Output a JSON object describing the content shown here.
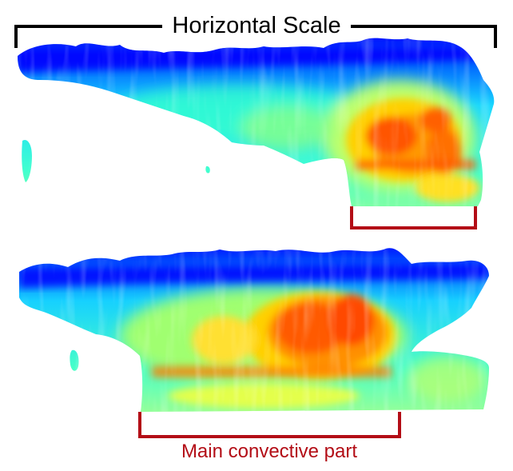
{
  "labels": {
    "horizontal_scale": "Horizontal Scale",
    "main_convective_part": "Main convective part"
  },
  "colors": {
    "scale_bracket": "#000000",
    "convective_bracket": "#b30d16",
    "convective_label": "#b30d16",
    "colormap": [
      "#0000ff",
      "#0080ff",
      "#00e5ff",
      "#9bffb0",
      "#ffff00",
      "#ff9900",
      "#ff4a00"
    ]
  },
  "panels": [
    {
      "name": "upper-storm-echo",
      "description_visible": false
    },
    {
      "name": "lower-storm-echo",
      "description_visible": false
    }
  ]
}
